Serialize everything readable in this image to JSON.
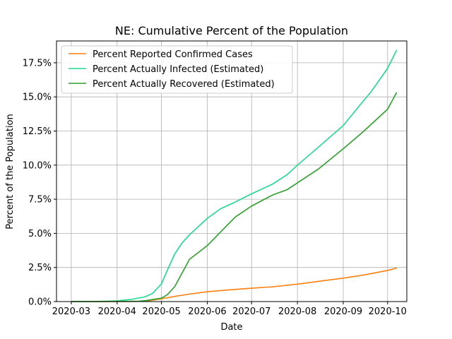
{
  "chart_data": {
    "type": "line",
    "title": "NE: Cumulative Percent of the Population",
    "xlabel": "Date",
    "ylabel": "Percent of the Population",
    "xlim": [
      "2020-02-20",
      "2020-10-14"
    ],
    "ylim": [
      0,
      19.1
    ],
    "x_ticks": [
      "2020-03",
      "2020-04",
      "2020-05",
      "2020-06",
      "2020-07",
      "2020-08",
      "2020-09",
      "2020-10"
    ],
    "y_ticks": [
      "0.0%",
      "2.5%",
      "5.0%",
      "7.5%",
      "10.0%",
      "12.5%",
      "15.0%",
      "17.5%"
    ],
    "grid": true,
    "legend_position": "upper-left",
    "series": [
      {
        "name": "Percent Reported Confirmed Cases",
        "color": "#ff7f0e",
        "points": [
          [
            "2020-03-01",
            0.0
          ],
          [
            "2020-03-20",
            0.0
          ],
          [
            "2020-04-10",
            0.01
          ],
          [
            "2020-04-20",
            0.02
          ],
          [
            "2020-05-01",
            0.2
          ],
          [
            "2020-05-10",
            0.38
          ],
          [
            "2020-05-20",
            0.55
          ],
          [
            "2020-06-01",
            0.72
          ],
          [
            "2020-06-15",
            0.85
          ],
          [
            "2020-07-01",
            0.98
          ],
          [
            "2020-07-15",
            1.08
          ],
          [
            "2020-08-01",
            1.28
          ],
          [
            "2020-08-15",
            1.48
          ],
          [
            "2020-09-01",
            1.72
          ],
          [
            "2020-09-15",
            1.95
          ],
          [
            "2020-10-01",
            2.28
          ],
          [
            "2020-10-07",
            2.45
          ]
        ]
      },
      {
        "name": "Percent Actually Infected (Estimated)",
        "color": "#1fd990",
        "points": [
          [
            "2020-03-01",
            0.0
          ],
          [
            "2020-03-20",
            0.01
          ],
          [
            "2020-04-01",
            0.05
          ],
          [
            "2020-04-10",
            0.15
          ],
          [
            "2020-04-20",
            0.35
          ],
          [
            "2020-04-25",
            0.6
          ],
          [
            "2020-05-01",
            1.3
          ],
          [
            "2020-05-05",
            2.3
          ],
          [
            "2020-05-10",
            3.5
          ],
          [
            "2020-05-15",
            4.3
          ],
          [
            "2020-05-20",
            4.9
          ],
          [
            "2020-06-01",
            6.1
          ],
          [
            "2020-06-10",
            6.8
          ],
          [
            "2020-06-20",
            7.3
          ],
          [
            "2020-07-01",
            7.9
          ],
          [
            "2020-07-15",
            8.6
          ],
          [
            "2020-07-25",
            9.3
          ],
          [
            "2020-08-01",
            10.0
          ],
          [
            "2020-08-15",
            11.3
          ],
          [
            "2020-09-01",
            12.9
          ],
          [
            "2020-09-10",
            14.1
          ],
          [
            "2020-09-20",
            15.4
          ],
          [
            "2020-10-01",
            17.1
          ],
          [
            "2020-10-07",
            18.4
          ]
        ]
      },
      {
        "name": "Percent Actually Recovered (Estimated)",
        "color": "#2ca02c",
        "points": [
          [
            "2020-03-01",
            0.0
          ],
          [
            "2020-04-15",
            0.02
          ],
          [
            "2020-04-20",
            0.07
          ],
          [
            "2020-05-01",
            0.25
          ],
          [
            "2020-05-05",
            0.5
          ],
          [
            "2020-05-10",
            1.1
          ],
          [
            "2020-05-15",
            2.1
          ],
          [
            "2020-05-20",
            3.1
          ],
          [
            "2020-06-01",
            4.1
          ],
          [
            "2020-06-10",
            5.1
          ],
          [
            "2020-06-20",
            6.2
          ],
          [
            "2020-07-01",
            7.0
          ],
          [
            "2020-07-15",
            7.8
          ],
          [
            "2020-07-25",
            8.2
          ],
          [
            "2020-08-01",
            8.7
          ],
          [
            "2020-08-15",
            9.7
          ],
          [
            "2020-09-01",
            11.2
          ],
          [
            "2020-09-15",
            12.5
          ],
          [
            "2020-10-01",
            14.1
          ],
          [
            "2020-10-07",
            15.3
          ]
        ]
      }
    ]
  }
}
